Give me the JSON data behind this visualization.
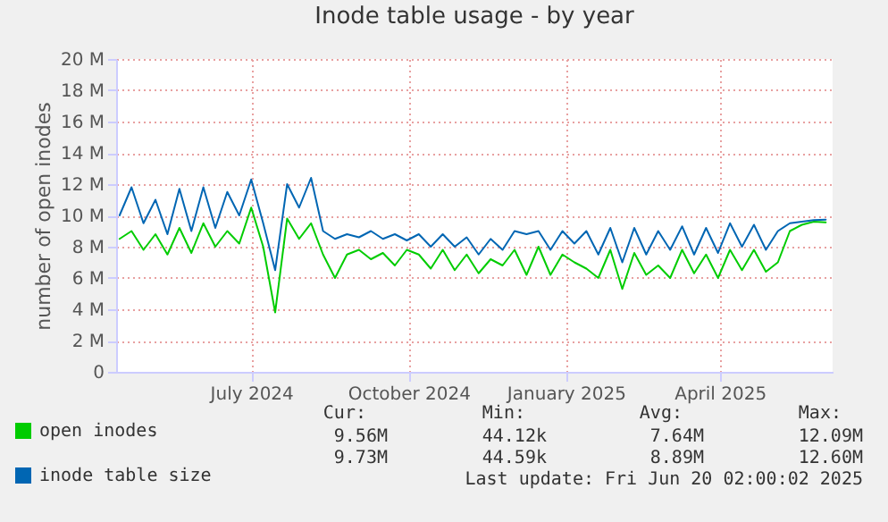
{
  "chart_data": {
    "type": "line",
    "title": "Inode table usage - by year",
    "ylabel": "number of open inodes",
    "x": [
      "2024-04-30",
      "2024-05-07",
      "2024-05-14",
      "2024-05-21",
      "2024-05-28",
      "2024-06-04",
      "2024-06-11",
      "2024-06-18",
      "2024-06-25",
      "2024-07-02",
      "2024-07-09",
      "2024-07-16",
      "2024-07-23",
      "2024-07-30",
      "2024-08-06",
      "2024-08-13",
      "2024-08-20",
      "2024-08-27",
      "2024-09-03",
      "2024-09-10",
      "2024-09-17",
      "2024-09-24",
      "2024-10-01",
      "2024-10-08",
      "2024-10-15",
      "2024-10-22",
      "2024-10-29",
      "2024-11-05",
      "2024-11-12",
      "2024-11-19",
      "2024-11-26",
      "2024-12-03",
      "2024-12-10",
      "2024-12-17",
      "2024-12-24",
      "2024-12-31",
      "2025-01-07",
      "2025-01-14",
      "2025-01-21",
      "2025-01-28",
      "2025-02-04",
      "2025-02-11",
      "2025-02-18",
      "2025-02-25",
      "2025-03-04",
      "2025-03-11",
      "2025-03-18",
      "2025-03-25",
      "2025-04-01",
      "2025-04-08",
      "2025-04-15",
      "2025-04-22",
      "2025-04-29",
      "2025-05-06",
      "2025-05-13",
      "2025-05-20",
      "2025-05-27",
      "2025-06-03",
      "2025-06-10",
      "2025-06-17"
    ],
    "series": [
      {
        "name": "open inodes",
        "color": "#00cc00",
        "values": [
          8.5,
          9.0,
          7.8,
          8.8,
          7.5,
          9.2,
          7.6,
          9.5,
          8.0,
          9.0,
          8.2,
          10.5,
          8.0,
          3.8,
          9.8,
          8.5,
          9.5,
          7.5,
          6.0,
          7.5,
          7.8,
          7.2,
          7.6,
          6.8,
          7.8,
          7.5,
          6.6,
          7.8,
          6.5,
          7.5,
          6.3,
          7.2,
          6.8,
          7.8,
          6.2,
          8.0,
          6.2,
          7.5,
          7.0,
          6.6,
          6.0,
          7.8,
          5.3,
          7.6,
          6.2,
          6.8,
          6.0,
          7.8,
          6.3,
          7.5,
          6.0,
          7.8,
          6.5,
          7.8,
          6.4,
          7.0,
          9.0,
          9.4,
          9.6,
          9.56
        ]
      },
      {
        "name": "inode table size",
        "color": "#0066b3",
        "values": [
          10.0,
          11.8,
          9.5,
          11.0,
          8.8,
          11.7,
          9.0,
          11.8,
          9.2,
          11.5,
          10.0,
          12.3,
          9.5,
          6.5,
          12.0,
          10.5,
          12.4,
          9.0,
          8.5,
          8.8,
          8.6,
          9.0,
          8.5,
          8.8,
          8.4,
          8.8,
          8.0,
          8.8,
          8.0,
          8.6,
          7.5,
          8.5,
          7.8,
          9.0,
          8.8,
          9.0,
          7.8,
          9.0,
          8.2,
          9.0,
          7.5,
          9.2,
          7.0,
          9.2,
          7.5,
          9.0,
          7.8,
          9.3,
          7.5,
          9.2,
          7.6,
          9.5,
          8.0,
          9.4,
          7.8,
          9.0,
          9.5,
          9.6,
          9.7,
          9.73
        ]
      }
    ],
    "xlim": [
      "2024-04-28",
      "2025-06-21"
    ],
    "xticks": [
      {
        "value": "2024-07-16",
        "label": "July 2024"
      },
      {
        "value": "2024-10-16",
        "label": "October 2024"
      },
      {
        "value": "2025-01-16",
        "label": "January 2025"
      },
      {
        "value": "2025-04-16",
        "label": "April 2025"
      }
    ],
    "ylim": [
      0,
      20
    ],
    "yticks": [
      0,
      {
        "value": 2,
        "label": "2 M"
      },
      {
        "value": 4,
        "label": "4 M"
      },
      {
        "value": 6,
        "label": "6 M"
      },
      {
        "value": 8,
        "label": "8 M"
      },
      {
        "value": 10,
        "label": "10 M"
      },
      {
        "value": 12,
        "label": "12 M"
      },
      {
        "value": 14,
        "label": "14 M"
      },
      {
        "value": 16,
        "label": "16 M"
      },
      {
        "value": 18,
        "label": "18 M"
      },
      {
        "value": 20,
        "label": "20 M"
      }
    ],
    "grid": true,
    "legend": "bottom",
    "marker": "none",
    "line_style": "solid",
    "annotations": [
      "Cur:",
      "Min:",
      "Avg:",
      "Max:",
      "9.56M",
      "44.12k",
      "7.64M",
      "12.09M",
      "9.73M",
      "44.59k",
      "8.89M",
      "12.60M",
      "Last update: Fri Jun 20 02:00:02 2025"
    ]
  }
}
